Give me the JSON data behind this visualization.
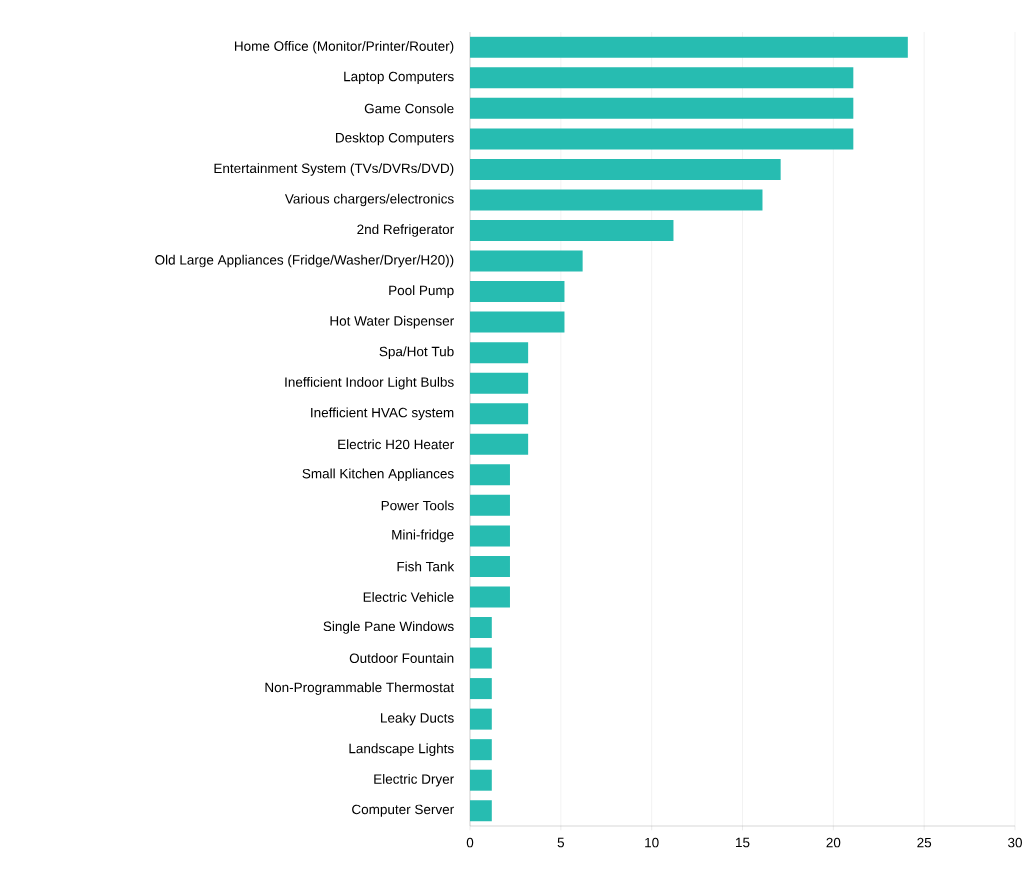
{
  "chart_data": {
    "type": "bar",
    "orientation": "horizontal",
    "categories": [
      "Home Office (Monitor/Printer/Router)",
      "Laptop Computers",
      "Game Console",
      "Desktop Computers",
      "Entertainment System (TVs/DVRs/DVD)",
      "Various chargers/electronics",
      "2nd Refrigerator",
      "Old Large Appliances (Fridge/Washer/Dryer/H20))",
      "Pool Pump",
      "Hot Water Dispenser",
      "Spa/Hot Tub",
      "Inefficient Indoor Light Bulbs",
      "Inefficient HVAC system",
      "Electric H20 Heater",
      "Small Kitchen Appliances",
      "Power Tools",
      "Mini-fridge",
      "Fish Tank",
      "Electric Vehicle",
      "Single Pane Windows",
      "Outdoor Fountain",
      "Non-Programmable Thermostat",
      "Leaky Ducts",
      "Landscape Lights",
      "Electric Dryer",
      "Computer Server"
    ],
    "values": [
      24.1,
      21.1,
      21.1,
      21.1,
      17.1,
      16.1,
      11.2,
      6.2,
      5.2,
      5.2,
      3.2,
      3.2,
      3.2,
      3.2,
      2.2,
      2.2,
      2.2,
      2.2,
      2.2,
      1.2,
      1.2,
      1.2,
      1.2,
      1.2,
      1.2,
      1.2
    ],
    "color": "#27bcb1",
    "xlim": [
      0,
      30
    ],
    "xticks": [
      0,
      5,
      10,
      15,
      20,
      25,
      30
    ],
    "grid": "x"
  }
}
